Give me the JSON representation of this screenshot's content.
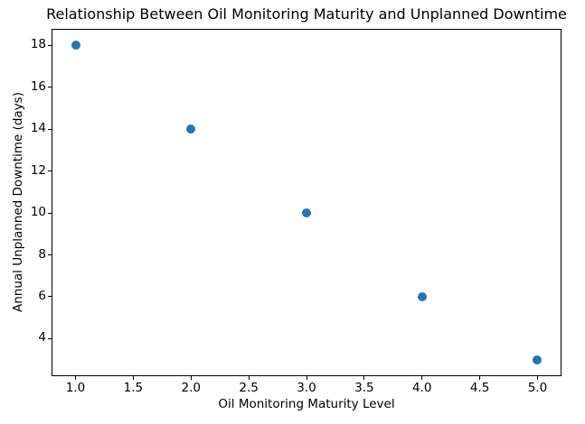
{
  "chart_data": {
    "type": "scatter",
    "title": "Relationship Between Oil Monitoring Maturity and Unplanned Downtime",
    "xlabel": "Oil Monitoring Maturity Level",
    "ylabel": "Annual Unplanned Downtime (days)",
    "x": [
      1,
      2,
      3,
      4,
      5
    ],
    "y": [
      18,
      14,
      10,
      6,
      3
    ],
    "xlim": [
      0.8,
      5.2
    ],
    "ylim": [
      2.25,
      18.75
    ],
    "xticks": [
      1.0,
      1.5,
      2.0,
      2.5,
      3.0,
      3.5,
      4.0,
      4.5,
      5.0
    ],
    "xtick_labels": [
      "1.0",
      "1.5",
      "2.0",
      "2.5",
      "3.0",
      "3.5",
      "4.0",
      "4.5",
      "5.0"
    ],
    "yticks": [
      4,
      6,
      8,
      10,
      12,
      14,
      16,
      18
    ],
    "ytick_labels": [
      "4",
      "6",
      "8",
      "10",
      "12",
      "14",
      "16",
      "18"
    ],
    "grid": false,
    "legend_position": "none",
    "marker": "circle",
    "point_color": "#1f77b4",
    "background_color": "#ffffff",
    "text_color": "#000000"
  }
}
